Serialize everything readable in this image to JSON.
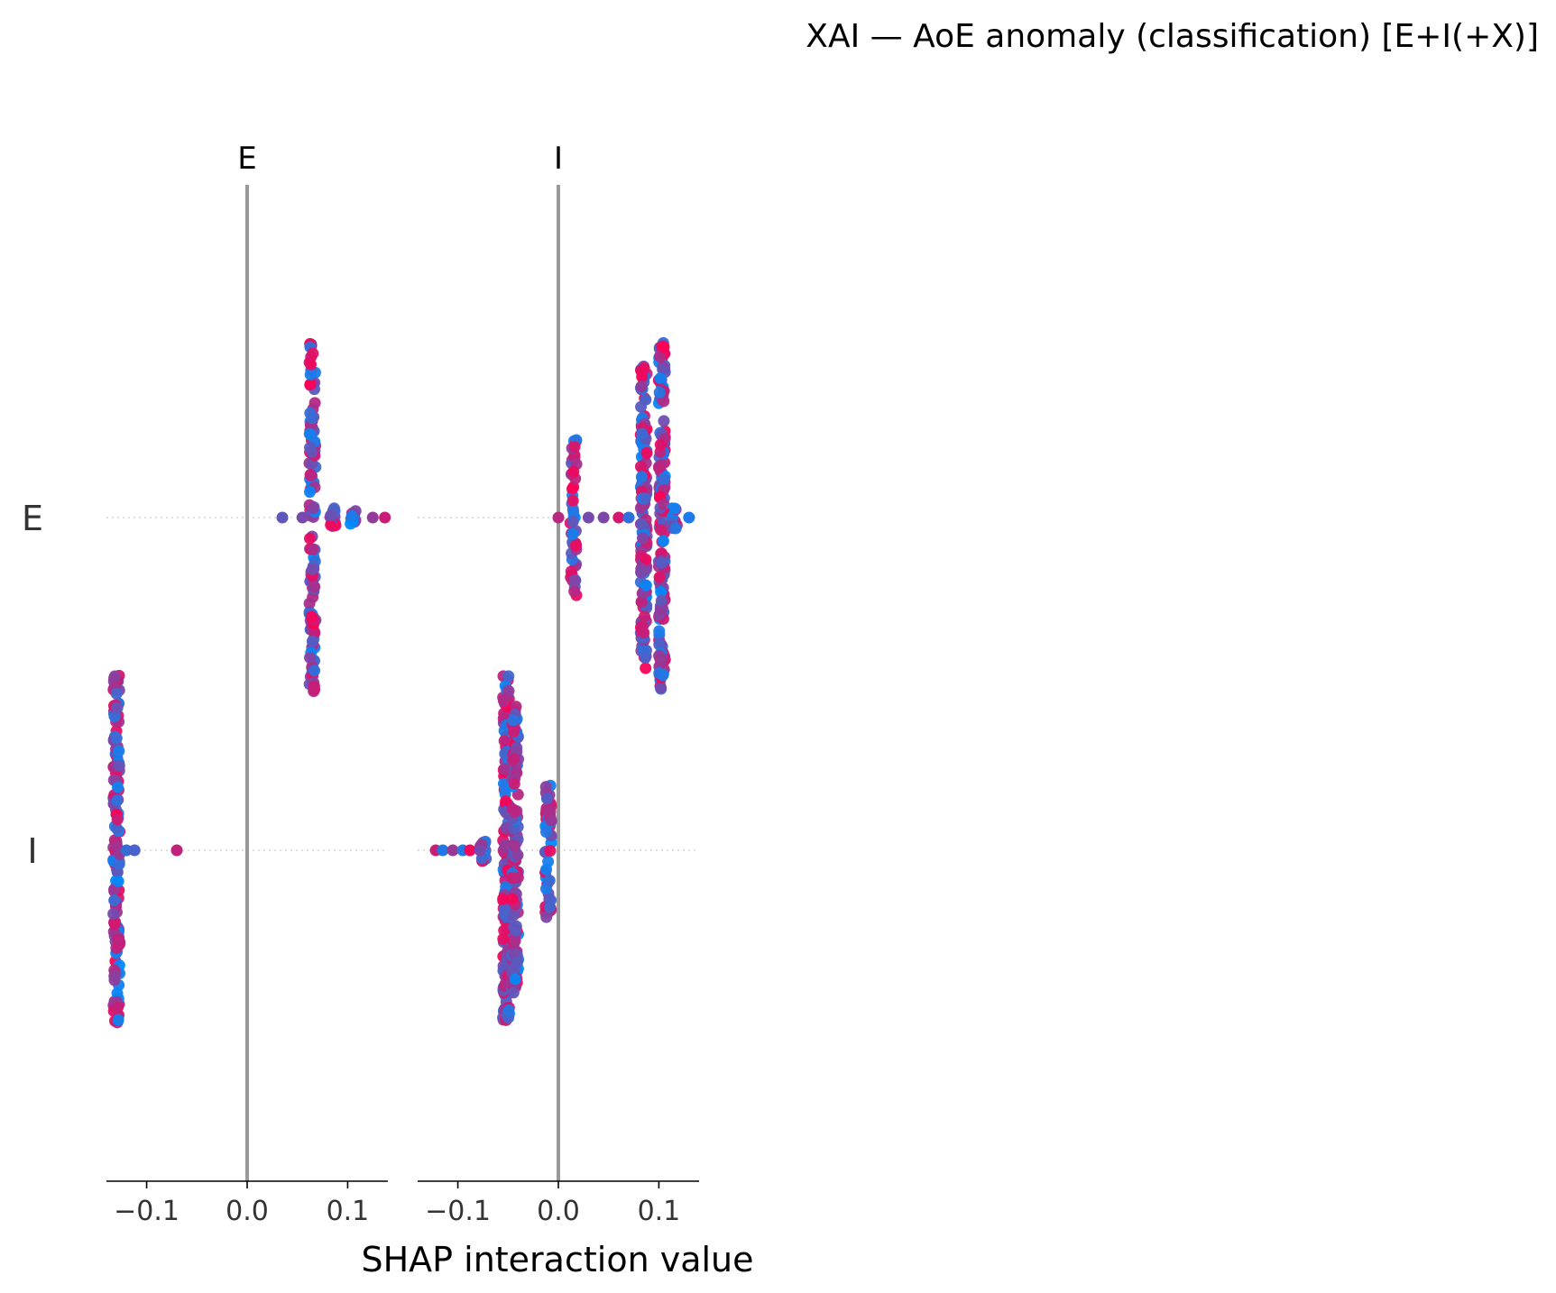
{
  "chart_data": {
    "type": "scatter",
    "subtype": "shap-interaction-beeswarm",
    "title": "XAI — AoE anomaly (classification) [E+I(+X)]",
    "xlabel": "SHAP interaction value",
    "features": [
      "E",
      "I"
    ],
    "column_titles": [
      "E",
      "I"
    ],
    "row_labels": [
      "E",
      "I"
    ],
    "xlim": [
      -0.14,
      0.14
    ],
    "xticks": [
      -0.1,
      0.0,
      0.1
    ],
    "xtick_labels": [
      "−0.1",
      "0.0",
      "0.1"
    ],
    "zero_line_color": "#999999",
    "color_low": "#008afb",
    "color_high": "#ff0052",
    "grid": false,
    "panels": [
      {
        "column": "E",
        "row": "E",
        "clusters": [
          {
            "x": 0.065,
            "spread": 0.75,
            "count": 140
          },
          {
            "x": 0.085,
            "spread": 0.04,
            "count": 14
          },
          {
            "x": 0.105,
            "spread": 0.03,
            "count": 10
          }
        ],
        "outliers": [
          0.035,
          0.055,
          0.125,
          0.137
        ]
      },
      {
        "column": "I",
        "row": "E",
        "clusters": [
          {
            "x": 0.015,
            "spread": 0.34,
            "count": 50
          },
          {
            "x": 0.085,
            "spread": 0.65,
            "count": 150
          },
          {
            "x": 0.103,
            "spread": 0.75,
            "count": 170
          },
          {
            "x": 0.115,
            "spread": 0.05,
            "count": 14
          }
        ],
        "outliers": [
          0.0,
          0.03,
          0.045,
          0.06,
          0.07,
          0.13
        ]
      },
      {
        "column": "E",
        "row": "I",
        "clusters": [
          {
            "x": -0.13,
            "spread": 0.75,
            "count": 160
          }
        ],
        "outliers": [
          -0.12,
          -0.112,
          -0.07
        ]
      },
      {
        "column": "I",
        "row": "I",
        "clusters": [
          {
            "x": -0.052,
            "spread": 0.75,
            "count": 160
          },
          {
            "x": -0.043,
            "spread": 0.62,
            "count": 120
          },
          {
            "x": -0.01,
            "spread": 0.3,
            "count": 50
          },
          {
            "x": -0.075,
            "spread": 0.05,
            "count": 12
          }
        ],
        "outliers": [
          -0.122,
          -0.115,
          -0.105,
          -0.095,
          -0.088,
          -0.078
        ]
      }
    ]
  }
}
